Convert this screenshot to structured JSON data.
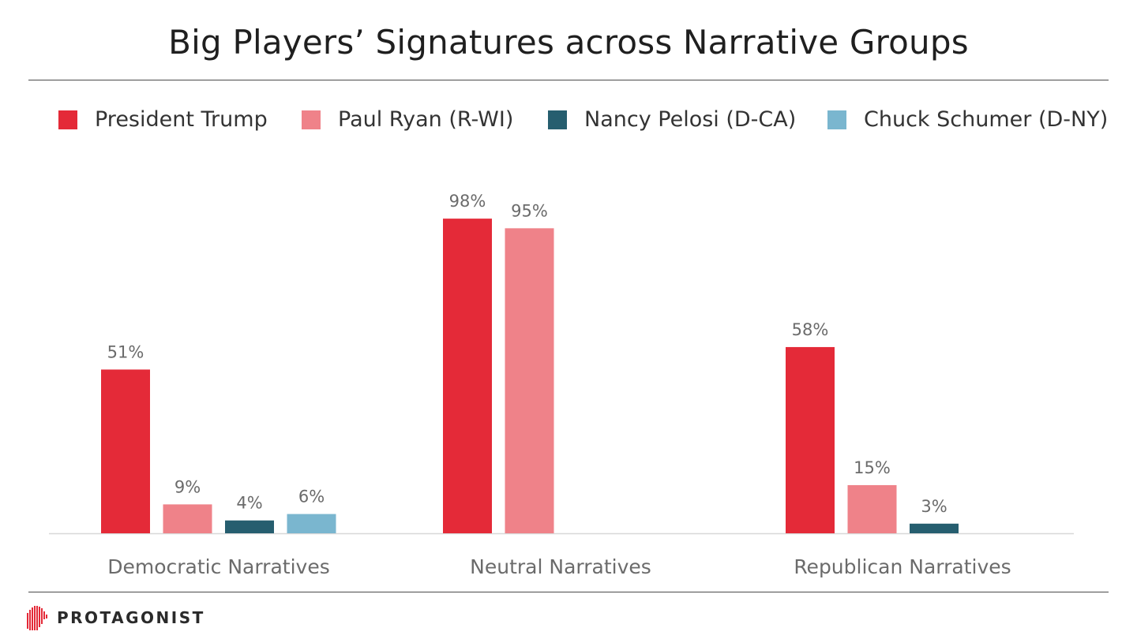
{
  "colors": {
    "trump": "#e42a38",
    "ryan": "#ef8289",
    "pelosi": "#265e6f",
    "schumer": "#7ab6cf",
    "baseline": "#d8d8d8",
    "rule": "#4a4a4a",
    "brand": "#e42a38"
  },
  "legend": [
    {
      "label": "President Trump",
      "color": "#e42a38"
    },
    {
      "label": "Paul Ryan (R-WI)",
      "color": "#ef8289"
    },
    {
      "label": "Nancy Pelosi (D-CA)",
      "color": "#265e6f"
    },
    {
      "label": "Chuck Schumer (D-NY)",
      "color": "#7ab6cf"
    }
  ],
  "brand": {
    "name": "PROTAGONIST",
    "logo_icon": "head-profile-icon"
  },
  "chart_data": {
    "type": "bar",
    "title": "Big Players’ Signatures across Narrative Groups",
    "xlabel": "",
    "ylabel": "",
    "ylim": [
      0,
      100
    ],
    "grid": false,
    "legend_position": "top",
    "categories": [
      "Democratic Narratives",
      "Neutral Narratives",
      "Republican Narratives"
    ],
    "series": [
      {
        "name": "President Trump",
        "color": "#e42a38",
        "values": [
          51,
          98,
          58
        ],
        "labels": [
          "51%",
          "98%",
          "58%"
        ]
      },
      {
        "name": "Paul Ryan (R-WI)",
        "color": "#ef8289",
        "values": [
          9,
          95,
          15
        ],
        "labels": [
          "9%",
          "95%",
          "15%"
        ]
      },
      {
        "name": "Nancy Pelosi (D-CA)",
        "color": "#265e6f",
        "values": [
          4,
          null,
          3
        ],
        "labels": [
          "4%",
          null,
          "3%"
        ]
      },
      {
        "name": "Chuck Schumer (D-NY)",
        "color": "#7ab6cf",
        "values": [
          6,
          null,
          null
        ],
        "labels": [
          "6%",
          null,
          null
        ]
      }
    ]
  }
}
